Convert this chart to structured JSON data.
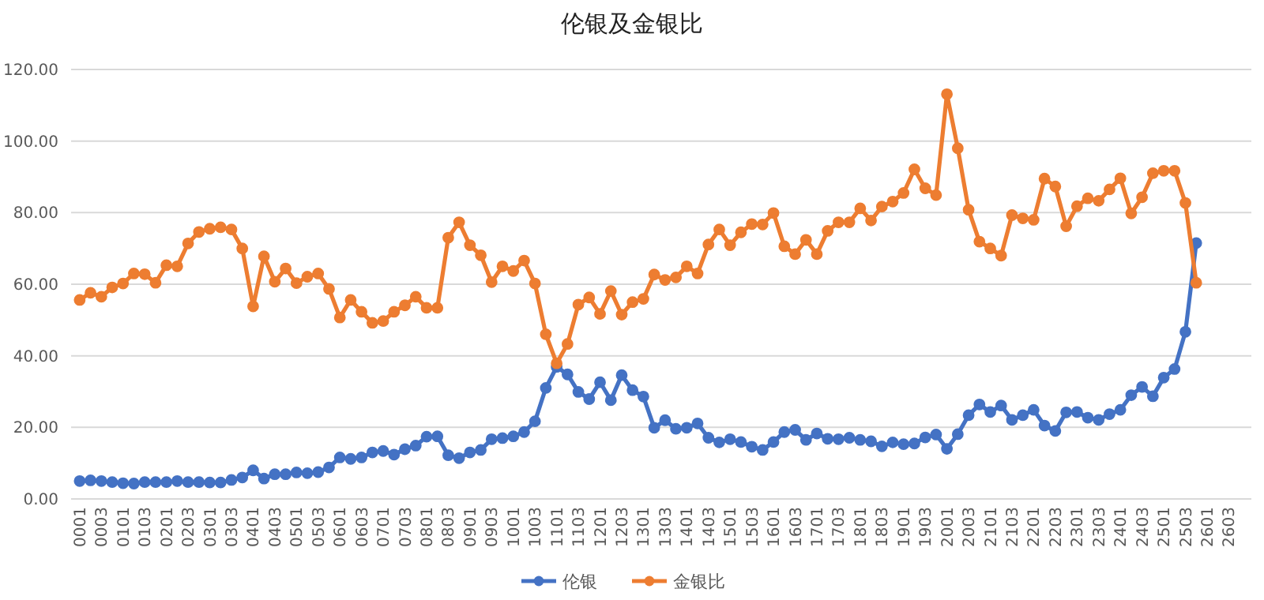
{
  "chart_data": {
    "type": "line",
    "title": "伦银及金银比",
    "categories": [
      "0001",
      null,
      "0003",
      null,
      "0101",
      null,
      "0103",
      null,
      "0201",
      null,
      "0203",
      null,
      "0301",
      null,
      "0303",
      null,
      "0401",
      null,
      "0403",
      null,
      "0501",
      null,
      "0503",
      null,
      "0601",
      null,
      "0603",
      null,
      "0701",
      null,
      "0703",
      null,
      "0801",
      null,
      "0803",
      null,
      "0901",
      null,
      "0903",
      null,
      "1001",
      null,
      "1003",
      null,
      "1101",
      null,
      "1103",
      null,
      "1201",
      null,
      "1203",
      null,
      "1301",
      null,
      "1303",
      null,
      "1401",
      null,
      "1403",
      null,
      "1501",
      null,
      "1503",
      null,
      "1601",
      null,
      "1603",
      null,
      "1701",
      null,
      "1703",
      null,
      "1801",
      null,
      "1803",
      null,
      "1901",
      null,
      "1903",
      null,
      "2001",
      null,
      "2003",
      null,
      "2101",
      null,
      "2103",
      null,
      "2201",
      null,
      "2203",
      null,
      "2301",
      null,
      "2303",
      null,
      "2401",
      null,
      "2403",
      null,
      "2501",
      null,
      "2503",
      null,
      "2601",
      null,
      "2603",
      null
    ],
    "series": [
      {
        "name": "伦银",
        "color": "#4472c4",
        "values": [
          5.0,
          5.2,
          5.0,
          4.7,
          4.4,
          4.3,
          4.7,
          4.7,
          4.7,
          5.0,
          4.7,
          4.7,
          4.6,
          4.6,
          5.3,
          6.0,
          8.0,
          5.7,
          6.9,
          6.9,
          7.4,
          7.2,
          7.5,
          8.8,
          11.6,
          11.2,
          11.6,
          13.0,
          13.4,
          12.4,
          13.9,
          14.9,
          17.4,
          17.5,
          12.2,
          11.4,
          13.0,
          13.7,
          16.7,
          17.0,
          17.5,
          18.7,
          21.7,
          31.0,
          36.9,
          34.8,
          29.9,
          27.9,
          32.6,
          27.6,
          34.6,
          30.4,
          28.6,
          19.9,
          22.0,
          19.6,
          19.9,
          21.1,
          17.1,
          15.8,
          16.7,
          15.9,
          14.6,
          13.7,
          15.9,
          18.7,
          19.3,
          16.5,
          18.3,
          16.8,
          16.7,
          17.1,
          16.5,
          16.1,
          14.7,
          15.8,
          15.3,
          15.5,
          17.2,
          18.0,
          14.0,
          18.1,
          23.4,
          26.4,
          24.3,
          26.1,
          22.1,
          23.4,
          24.9,
          20.5,
          19.0,
          24.2,
          24.3,
          22.7,
          22.1,
          23.7,
          24.9,
          29.0,
          31.3,
          28.7,
          33.9,
          36.3,
          46.7,
          71.5,
          null,
          null,
          null,
          null
        ]
      },
      {
        "name": "金银比",
        "color": "#ed7d31",
        "values": [
          55.6,
          57.6,
          56.5,
          59.1,
          60.2,
          63.0,
          62.8,
          60.4,
          65.3,
          65.0,
          71.4,
          74.6,
          75.5,
          75.9,
          75.3,
          70.0,
          53.8,
          67.8,
          60.7,
          64.4,
          60.3,
          62.1,
          63.0,
          58.7,
          50.7,
          55.6,
          52.3,
          49.2,
          49.7,
          52.3,
          54.1,
          56.5,
          53.4,
          53.4,
          73.0,
          77.3,
          70.9,
          68.1,
          60.6,
          65.0,
          63.7,
          66.6,
          60.2,
          46.0,
          37.9,
          43.3,
          54.3,
          56.3,
          51.7,
          58.1,
          51.5,
          55.0,
          55.9,
          62.7,
          61.2,
          61.9,
          65.0,
          63.0,
          71.1,
          75.3,
          70.9,
          74.5,
          76.8,
          76.7,
          79.9,
          70.6,
          68.4,
          72.4,
          68.4,
          74.9,
          77.3,
          77.3,
          81.2,
          77.8,
          81.7,
          83.1,
          85.5,
          92.1,
          86.8,
          84.9,
          113.1,
          98.0,
          80.8,
          71.9,
          70.0,
          68.0,
          79.3,
          78.4,
          78.0,
          89.5,
          87.3,
          76.2,
          81.8,
          84.0,
          83.3,
          86.5,
          89.6,
          79.8,
          84.3,
          91.0,
          91.7,
          91.7,
          82.7,
          60.4,
          null,
          null,
          null,
          null
        ]
      }
    ],
    "ylim": [
      0,
      120
    ],
    "yticks": [
      {
        "value": 0,
        "label": "0.00"
      },
      {
        "value": 20,
        "label": "20.00"
      },
      {
        "value": 40,
        "label": "40.00"
      },
      {
        "value": 60,
        "label": "60.00"
      },
      {
        "value": 80,
        "label": "80.00"
      },
      {
        "value": 100,
        "label": "100.00"
      },
      {
        "value": 120,
        "label": "120.00"
      }
    ],
    "grid": "y",
    "legend": "bottom",
    "marker": "circle",
    "line_style": "solid"
  }
}
